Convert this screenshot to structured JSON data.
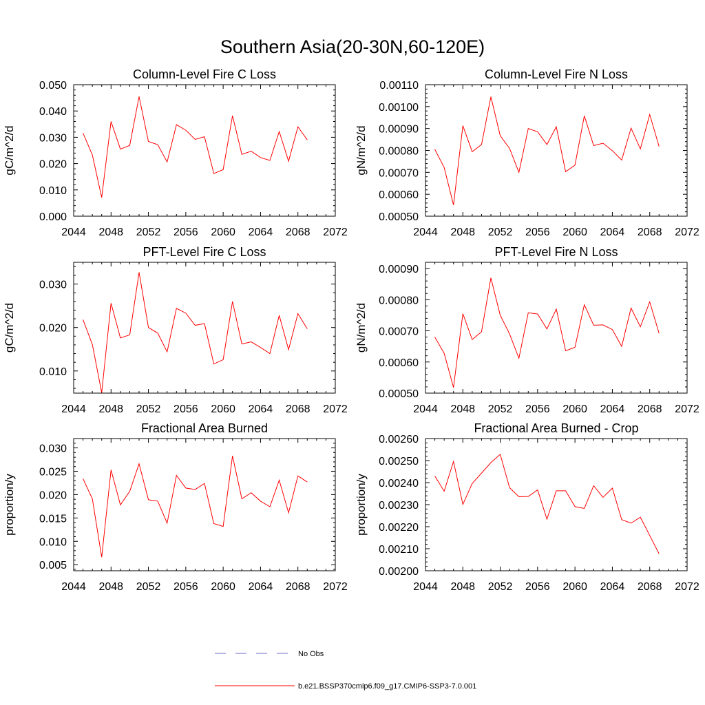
{
  "figure": {
    "title": "Southern Asia(20-30N,60-120E)"
  },
  "legend": [
    {
      "label": "No Obs",
      "color": "#6d6dcc",
      "dash": true
    },
    {
      "label": "b.e21.BSSP370cmip6.f09_g17.CMIP6-SSP3-7.0.001",
      "color": "#ff0000",
      "dash": false
    }
  ],
  "chart_data": [
    {
      "type": "line",
      "title": "Column-Level Fire C Loss",
      "ylabel": "gC/m^2/d",
      "xlim": [
        2044,
        2072
      ],
      "xticks": [
        "2044",
        "2048",
        "2052",
        "2056",
        "2060",
        "2064",
        "2068",
        "2072"
      ],
      "ylim": [
        0.0,
        0.05
      ],
      "yticks": [
        "0.000",
        "0.010",
        "0.020",
        "0.030",
        "0.040",
        "0.050"
      ],
      "ytick_values": [
        0.0,
        0.01,
        0.02,
        0.03,
        0.04,
        0.05
      ],
      "x": [
        2045,
        2046,
        2047,
        2048,
        2049,
        2050,
        2051,
        2052,
        2053,
        2054,
        2055,
        2056,
        2057,
        2058,
        2059,
        2060,
        2061,
        2062,
        2063,
        2064,
        2065,
        2066,
        2067,
        2068,
        2069
      ],
      "series": [
        {
          "color": "#ff0000",
          "values": [
            0.0316,
            0.0233,
            0.0071,
            0.036,
            0.0255,
            0.0269,
            0.0455,
            0.0284,
            0.0272,
            0.0206,
            0.0348,
            0.0327,
            0.0292,
            0.0302,
            0.0162,
            0.0177,
            0.0382,
            0.0235,
            0.0247,
            0.0223,
            0.0212,
            0.0322,
            0.0209,
            0.034,
            0.029
          ]
        }
      ]
    },
    {
      "type": "line",
      "title": "Column-Level Fire N Loss",
      "ylabel": "gN/m^2/d",
      "xlim": [
        2044,
        2072
      ],
      "xticks": [
        "2044",
        "2048",
        "2052",
        "2056",
        "2060",
        "2064",
        "2068",
        "2072"
      ],
      "ylim": [
        0.0005,
        0.0011
      ],
      "yticks": [
        "0.00050",
        "0.00060",
        "0.00070",
        "0.00080",
        "0.00090",
        "0.00100",
        "0.00110"
      ],
      "ytick_values": [
        0.0005,
        0.0006,
        0.0007,
        0.0008,
        0.0009,
        0.001,
        0.0011
      ],
      "x": [
        2045,
        2046,
        2047,
        2048,
        2049,
        2050,
        2051,
        2052,
        2053,
        2054,
        2055,
        2056,
        2057,
        2058,
        2059,
        2060,
        2061,
        2062,
        2063,
        2064,
        2065,
        2066,
        2067,
        2068,
        2069
      ],
      "series": [
        {
          "color": "#ff0000",
          "values": [
            0.000805,
            0.000722,
            0.000551,
            0.000913,
            0.000794,
            0.000827,
            0.001045,
            0.000867,
            0.000809,
            0.0007,
            0.0009,
            0.000885,
            0.000827,
            0.000908,
            0.000703,
            0.000733,
            0.000958,
            0.000822,
            0.000833,
            0.000799,
            0.000756,
            0.000902,
            0.000807,
            0.000964,
            0.000818
          ]
        }
      ]
    },
    {
      "type": "line",
      "title": "PFT-Level Fire C Loss",
      "ylabel": "gC/m^2/d",
      "xlim": [
        2044,
        2072
      ],
      "xticks": [
        "2044",
        "2048",
        "2052",
        "2056",
        "2060",
        "2064",
        "2068",
        "2072"
      ],
      "ylim": [
        0.0049,
        0.035
      ],
      "yticks": [
        "0.010",
        "0.020",
        "0.030"
      ],
      "ytick_values": [
        0.01,
        0.02,
        0.03
      ],
      "x": [
        2045,
        2046,
        2047,
        2048,
        2049,
        2050,
        2051,
        2052,
        2053,
        2054,
        2055,
        2056,
        2057,
        2058,
        2059,
        2060,
        2061,
        2062,
        2063,
        2064,
        2065,
        2066,
        2067,
        2068,
        2069
      ],
      "series": [
        {
          "color": "#ff0000",
          "values": [
            0.0218,
            0.0161,
            0.005,
            0.0256,
            0.0176,
            0.0183,
            0.0327,
            0.02,
            0.0187,
            0.0144,
            0.0244,
            0.0233,
            0.0205,
            0.0209,
            0.0116,
            0.0126,
            0.026,
            0.0162,
            0.0167,
            0.0154,
            0.014,
            0.0228,
            0.0149,
            0.0232,
            0.0197
          ]
        }
      ]
    },
    {
      "type": "line",
      "title": "PFT-Level Fire N Loss",
      "ylabel": "gN/m^2/d",
      "xlim": [
        2044,
        2072
      ],
      "xticks": [
        "2044",
        "2048",
        "2052",
        "2056",
        "2060",
        "2064",
        "2068",
        "2072"
      ],
      "ylim": [
        0.0005,
        0.00092
      ],
      "yticks": [
        "0.00050",
        "0.00060",
        "0.00070",
        "0.00080",
        "0.00090"
      ],
      "ytick_values": [
        0.0005,
        0.0006,
        0.0007,
        0.0008,
        0.0009
      ],
      "x": [
        2045,
        2046,
        2047,
        2048,
        2049,
        2050,
        2051,
        2052,
        2053,
        2054,
        2055,
        2056,
        2057,
        2058,
        2059,
        2060,
        2061,
        2062,
        2063,
        2064,
        2065,
        2066,
        2067,
        2068,
        2069
      ],
      "series": [
        {
          "color": "#ff0000",
          "values": [
            0.00068,
            0.000628,
            0.000518,
            0.000755,
            0.000672,
            0.000697,
            0.00087,
            0.00075,
            0.00069,
            0.000612,
            0.000758,
            0.000754,
            0.000706,
            0.00077,
            0.000636,
            0.000647,
            0.000784,
            0.000718,
            0.000719,
            0.000704,
            0.00065,
            0.000773,
            0.000713,
            0.000793,
            0.000692
          ]
        }
      ]
    },
    {
      "type": "line",
      "title": "Fractional Area Burned",
      "ylabel": "proportion/y",
      "xlim": [
        2044,
        2072
      ],
      "xticks": [
        "2044",
        "2048",
        "2052",
        "2056",
        "2060",
        "2064",
        "2068",
        "2072"
      ],
      "ylim": [
        0.0037,
        0.032
      ],
      "yticks": [
        "0.005",
        "0.010",
        "0.015",
        "0.020",
        "0.025",
        "0.030"
      ],
      "ytick_values": [
        0.005,
        0.01,
        0.015,
        0.02,
        0.025,
        0.03
      ],
      "x": [
        2045,
        2046,
        2047,
        2048,
        2049,
        2050,
        2051,
        2052,
        2053,
        2054,
        2055,
        2056,
        2057,
        2058,
        2059,
        2060,
        2061,
        2062,
        2063,
        2064,
        2065,
        2066,
        2067,
        2068,
        2069
      ],
      "series": [
        {
          "color": "#ff0000",
          "values": [
            0.0234,
            0.0191,
            0.0066,
            0.0253,
            0.0178,
            0.0207,
            0.0266,
            0.0189,
            0.0186,
            0.0139,
            0.0241,
            0.0214,
            0.0211,
            0.0224,
            0.0138,
            0.0132,
            0.0283,
            0.0191,
            0.0204,
            0.0186,
            0.0174,
            0.0231,
            0.0161,
            0.024,
            0.0227
          ]
        }
      ]
    },
    {
      "type": "line",
      "title": "Fractional Area Burned - Crop",
      "ylabel": "proportion/y",
      "xlim": [
        2044,
        2072
      ],
      "xticks": [
        "2044",
        "2048",
        "2052",
        "2056",
        "2060",
        "2064",
        "2068",
        "2072"
      ],
      "ylim": [
        0.002,
        0.0026
      ],
      "yticks": [
        "0.00200",
        "0.00210",
        "0.00220",
        "0.00230",
        "0.00240",
        "0.00250",
        "0.00260"
      ],
      "ytick_values": [
        0.002,
        0.0021,
        0.0022,
        0.0023,
        0.0024,
        0.0025,
        0.0026
      ],
      "x": [
        2045,
        2046,
        2047,
        2048,
        2049,
        2050,
        2051,
        2052,
        2053,
        2054,
        2055,
        2056,
        2057,
        2058,
        2059,
        2060,
        2061,
        2062,
        2063,
        2064,
        2065,
        2066,
        2067,
        2068,
        2069
      ],
      "series": [
        {
          "color": "#ff0000",
          "values": [
            0.00243,
            0.002361,
            0.002496,
            0.002301,
            0.002396,
            0.002443,
            0.002491,
            0.002528,
            0.002377,
            0.002336,
            0.002337,
            0.002367,
            0.002234,
            0.002363,
            0.002363,
            0.002291,
            0.002283,
            0.002386,
            0.002333,
            0.002375,
            0.002232,
            0.002216,
            0.002243,
            0.00216,
            0.002077
          ]
        }
      ]
    }
  ]
}
